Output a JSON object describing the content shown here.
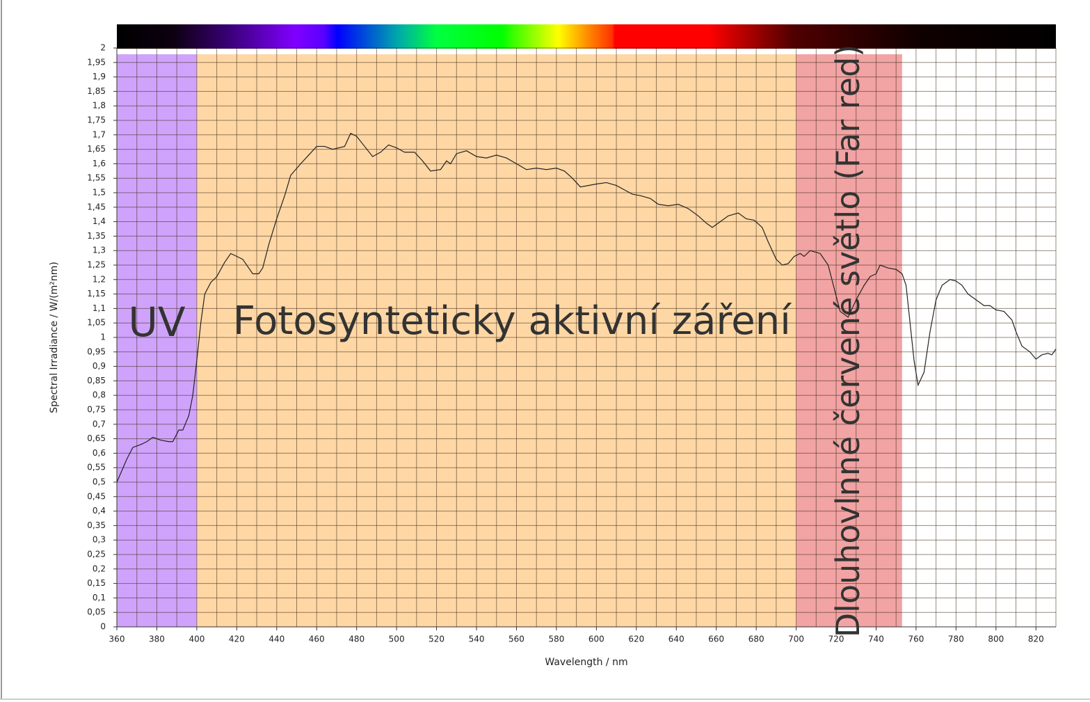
{
  "chart_data": {
    "type": "line",
    "xlabel": "Wavelength / nm",
    "ylabel": "Spectral Irradiance / W/(m²nm)",
    "xlim": [
      360,
      830
    ],
    "ylim": [
      0,
      2
    ],
    "xticks": [
      360,
      380,
      400,
      420,
      440,
      460,
      480,
      500,
      520,
      540,
      560,
      580,
      600,
      620,
      640,
      660,
      680,
      700,
      720,
      740,
      760,
      780,
      800,
      820
    ],
    "yticks": [
      0,
      {
        "value": 0.05,
        "label": "0,05"
      },
      {
        "value": 0.1,
        "label": "0,1"
      },
      {
        "value": 0.15,
        "label": "0,15"
      },
      {
        "value": 0.2,
        "label": "0,2"
      },
      {
        "value": 0.25,
        "label": "0,25"
      },
      {
        "value": 0.3,
        "label": "0,3"
      },
      {
        "value": 0.35,
        "label": "0,35"
      },
      {
        "value": 0.4,
        "label": "0,4"
      },
      {
        "value": 0.45,
        "label": "0,45"
      },
      {
        "value": 0.5,
        "label": "0,5"
      },
      {
        "value": 0.55,
        "label": "0,55"
      },
      {
        "value": 0.6,
        "label": "0,6"
      },
      {
        "value": 0.65,
        "label": "0,65"
      },
      {
        "value": 0.7,
        "label": "0,7"
      },
      {
        "value": 0.75,
        "label": "0,75"
      },
      {
        "value": 0.8,
        "label": "0,8"
      },
      {
        "value": 0.85,
        "label": "0,85"
      },
      {
        "value": 0.9,
        "label": "0,9"
      },
      {
        "value": 0.95,
        "label": "0,95"
      },
      1,
      {
        "value": 1.05,
        "label": "1,05"
      },
      {
        "value": 1.1,
        "label": "1,1"
      },
      {
        "value": 1.15,
        "label": "1,15"
      },
      {
        "value": 1.2,
        "label": "1,2"
      },
      {
        "value": 1.25,
        "label": "1,25"
      },
      {
        "value": 1.3,
        "label": "1,3"
      },
      {
        "value": 1.35,
        "label": "1,35"
      },
      {
        "value": 1.4,
        "label": "1,4"
      },
      {
        "value": 1.45,
        "label": "1,45"
      },
      {
        "value": 1.5,
        "label": "1,5"
      },
      {
        "value": 1.55,
        "label": "1,55"
      },
      {
        "value": 1.6,
        "label": "1,6"
      },
      {
        "value": 1.65,
        "label": "1,65"
      },
      {
        "value": 1.7,
        "label": "1,7"
      },
      {
        "value": 1.75,
        "label": "1,75"
      },
      {
        "value": 1.8,
        "label": "1,8"
      },
      {
        "value": 1.85,
        "label": "1,85"
      },
      {
        "value": 1.9,
        "label": "1,9"
      },
      {
        "value": 1.95,
        "label": "1,95"
      },
      2
    ],
    "grid": true,
    "regions": [
      {
        "label": "UV",
        "start": 360,
        "end": 400,
        "color": "#cfa3fb"
      },
      {
        "label": "Fotosynteticky aktivní záření",
        "start": 400,
        "end": 700,
        "color": "#fed7a5"
      },
      {
        "label": "Dlouhovlnné červené světlo (Far red)",
        "start": 700,
        "end": 753,
        "color": "#f2a3a3"
      }
    ],
    "series": [
      {
        "color": "#222222",
        "x": [
          360,
          365,
          368,
          372,
          375,
          378,
          382,
          386,
          388,
          391,
          393,
          396,
          398,
          400,
          402,
          404,
          407,
          410,
          414,
          417,
          420,
          423,
          426,
          428,
          431,
          433,
          436,
          440,
          444,
          447,
          452,
          456,
          460,
          464,
          468,
          474,
          477,
          480,
          484,
          488,
          492,
          496,
          500,
          504,
          509,
          513,
          517,
          522,
          525,
          527,
          530,
          535,
          540,
          545,
          550,
          555,
          560,
          565,
          570,
          575,
          580,
          584,
          588,
          592,
          596,
          600,
          605,
          610,
          614,
          618,
          622,
          627,
          631,
          636,
          641,
          646,
          651,
          655,
          658,
          662,
          666,
          671,
          675,
          679,
          683,
          686,
          690,
          693,
          696,
          699,
          702,
          704,
          707,
          712,
          716,
          719,
          722,
          726,
          730,
          734,
          737,
          740,
          742,
          746,
          750,
          753,
          755,
          757,
          759,
          761,
          764,
          767,
          770,
          773,
          777,
          780,
          783,
          786,
          790,
          794,
          797,
          800,
          804,
          808,
          810,
          813,
          817,
          820,
          823,
          826,
          828,
          830
        ],
        "values": [
          0.5,
          0.58,
          0.62,
          0.63,
          0.64,
          0.655,
          0.645,
          0.64,
          0.64,
          0.68,
          0.68,
          0.73,
          0.8,
          0.92,
          1.05,
          1.15,
          1.19,
          1.21,
          1.26,
          1.29,
          1.28,
          1.27,
          1.24,
          1.22,
          1.22,
          1.24,
          1.32,
          1.41,
          1.49,
          1.56,
          1.6,
          1.63,
          1.66,
          1.66,
          1.65,
          1.66,
          1.705,
          1.695,
          1.66,
          1.625,
          1.64,
          1.665,
          1.655,
          1.64,
          1.64,
          1.61,
          1.575,
          1.58,
          1.61,
          1.6,
          1.635,
          1.645,
          1.625,
          1.62,
          1.63,
          1.62,
          1.6,
          1.58,
          1.585,
          1.58,
          1.585,
          1.575,
          1.55,
          1.52,
          1.525,
          1.53,
          1.535,
          1.525,
          1.51,
          1.495,
          1.49,
          1.48,
          1.46,
          1.455,
          1.46,
          1.445,
          1.42,
          1.395,
          1.38,
          1.4,
          1.42,
          1.43,
          1.41,
          1.405,
          1.38,
          1.33,
          1.27,
          1.25,
          1.255,
          1.28,
          1.29,
          1.28,
          1.3,
          1.29,
          1.25,
          1.17,
          1.09,
          1.07,
          1.13,
          1.18,
          1.21,
          1.22,
          1.25,
          1.24,
          1.235,
          1.22,
          1.18,
          1.05,
          0.92,
          0.835,
          0.88,
          1.02,
          1.13,
          1.18,
          1.2,
          1.195,
          1.18,
          1.15,
          1.13,
          1.11,
          1.11,
          1.095,
          1.09,
          1.06,
          1.02,
          0.97,
          0.95,
          0.925,
          0.94,
          0.945,
          0.94,
          0.96
        ]
      }
    ]
  }
}
